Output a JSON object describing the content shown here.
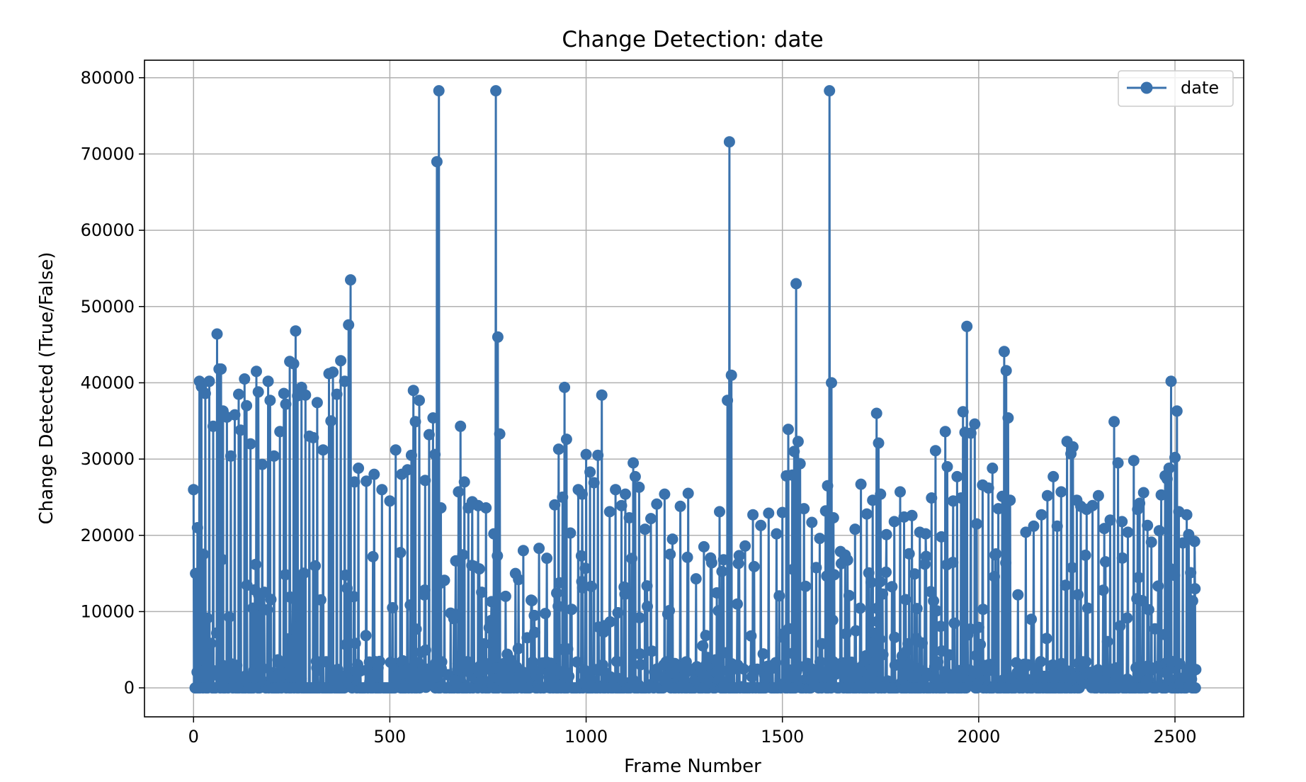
{
  "chart_data": {
    "type": "line",
    "title": "Change Detection: date",
    "xlabel": "Frame Number",
    "ylabel": "Change Detected (True/False)",
    "xlim": [
      -125,
      2675
    ],
    "ylim": [
      -3800,
      82300
    ],
    "xticks": [
      0,
      500,
      1000,
      1500,
      2000,
      2500
    ],
    "yticks": [
      0,
      10000,
      20000,
      30000,
      40000,
      50000,
      60000,
      70000,
      80000
    ],
    "grid": true,
    "legend_position": "top-right",
    "marker": "circle",
    "color": "#3a72ad",
    "series": [
      {
        "name": "date",
        "x_range": [
          0,
          2550
        ],
        "frame_step": 5,
        "peaks": [
          [
            0,
            26000
          ],
          [
            5,
            15000
          ],
          [
            10,
            21000
          ],
          [
            15,
            40200
          ],
          [
            20,
            39500
          ],
          [
            30,
            38600
          ],
          [
            40,
            40200
          ],
          [
            50,
            34300
          ],
          [
            60,
            46400
          ],
          [
            65,
            41800
          ],
          [
            70,
            41800
          ],
          [
            75,
            36300
          ],
          [
            85,
            35500
          ],
          [
            95,
            30400
          ],
          [
            105,
            35800
          ],
          [
            115,
            38500
          ],
          [
            120,
            33800
          ],
          [
            130,
            40500
          ],
          [
            135,
            37000
          ],
          [
            145,
            32000
          ],
          [
            160,
            41500
          ],
          [
            165,
            38800
          ],
          [
            175,
            29300
          ],
          [
            190,
            40200
          ],
          [
            195,
            37700
          ],
          [
            205,
            30400
          ],
          [
            220,
            33600
          ],
          [
            230,
            38600
          ],
          [
            235,
            37200
          ],
          [
            245,
            42800
          ],
          [
            255,
            42500
          ],
          [
            260,
            46800
          ],
          [
            265,
            38300
          ],
          [
            275,
            39400
          ],
          [
            285,
            38400
          ],
          [
            295,
            33000
          ],
          [
            305,
            32800
          ],
          [
            315,
            37400
          ],
          [
            330,
            31200
          ],
          [
            345,
            41200
          ],
          [
            350,
            35000
          ],
          [
            355,
            41400
          ],
          [
            365,
            38500
          ],
          [
            375,
            42900
          ],
          [
            385,
            40200
          ],
          [
            395,
            47600
          ],
          [
            400,
            53500
          ],
          [
            410,
            27000
          ],
          [
            420,
            28800
          ],
          [
            440,
            27100
          ],
          [
            460,
            28000
          ],
          [
            480,
            26000
          ],
          [
            500,
            24500
          ],
          [
            515,
            31200
          ],
          [
            530,
            28000
          ],
          [
            545,
            28600
          ],
          [
            555,
            30500
          ],
          [
            560,
            39000
          ],
          [
            565,
            34900
          ],
          [
            575,
            37700
          ],
          [
            590,
            27200
          ],
          [
            600,
            33200
          ],
          [
            610,
            35400
          ],
          [
            615,
            30600
          ],
          [
            620,
            69000
          ],
          [
            625,
            78300
          ],
          [
            630,
            23600
          ],
          [
            655,
            9800
          ],
          [
            675,
            25700
          ],
          [
            680,
            34300
          ],
          [
            690,
            27000
          ],
          [
            700,
            23600
          ],
          [
            710,
            24400
          ],
          [
            725,
            23900
          ],
          [
            745,
            23600
          ],
          [
            765,
            20200
          ],
          [
            770,
            78300
          ],
          [
            775,
            46000
          ],
          [
            780,
            33300
          ],
          [
            795,
            12000
          ],
          [
            820,
            15000
          ],
          [
            840,
            18000
          ],
          [
            860,
            11500
          ],
          [
            880,
            18300
          ],
          [
            900,
            17000
          ],
          [
            920,
            24000
          ],
          [
            930,
            31300
          ],
          [
            940,
            25000
          ],
          [
            945,
            39400
          ],
          [
            950,
            32600
          ],
          [
            960,
            20300
          ],
          [
            980,
            26000
          ],
          [
            990,
            25400
          ],
          [
            1000,
            30600
          ],
          [
            1010,
            28300
          ],
          [
            1020,
            26900
          ],
          [
            1030,
            30500
          ],
          [
            1040,
            38400
          ],
          [
            1060,
            23100
          ],
          [
            1075,
            26000
          ],
          [
            1090,
            23900
          ],
          [
            1100,
            25400
          ],
          [
            1110,
            22300
          ],
          [
            1120,
            29500
          ],
          [
            1125,
            27700
          ],
          [
            1135,
            26300
          ],
          [
            1150,
            20800
          ],
          [
            1165,
            22200
          ],
          [
            1180,
            24100
          ],
          [
            1200,
            25400
          ],
          [
            1220,
            19500
          ],
          [
            1240,
            23800
          ],
          [
            1260,
            25500
          ],
          [
            1280,
            14300
          ],
          [
            1300,
            18500
          ],
          [
            1320,
            16400
          ],
          [
            1340,
            23100
          ],
          [
            1350,
            16800
          ],
          [
            1360,
            37700
          ],
          [
            1365,
            71600
          ],
          [
            1370,
            41000
          ],
          [
            1385,
            11000
          ],
          [
            1405,
            18600
          ],
          [
            1425,
            22700
          ],
          [
            1445,
            21300
          ],
          [
            1465,
            22900
          ],
          [
            1485,
            20200
          ],
          [
            1500,
            23000
          ],
          [
            1510,
            27800
          ],
          [
            1515,
            33900
          ],
          [
            1525,
            27900
          ],
          [
            1530,
            31000
          ],
          [
            1535,
            53000
          ],
          [
            1540,
            32300
          ],
          [
            1545,
            29400
          ],
          [
            1555,
            23500
          ],
          [
            1575,
            21700
          ],
          [
            1595,
            19600
          ],
          [
            1610,
            23200
          ],
          [
            1615,
            26500
          ],
          [
            1620,
            78300
          ],
          [
            1625,
            40000
          ],
          [
            1630,
            22300
          ],
          [
            1650,
            16300
          ],
          [
            1670,
            12100
          ],
          [
            1685,
            20800
          ],
          [
            1700,
            26700
          ],
          [
            1715,
            22800
          ],
          [
            1730,
            24600
          ],
          [
            1740,
            36000
          ],
          [
            1745,
            32100
          ],
          [
            1750,
            25400
          ],
          [
            1765,
            20100
          ],
          [
            1785,
            21800
          ],
          [
            1800,
            25700
          ],
          [
            1810,
            22400
          ],
          [
            1830,
            22600
          ],
          [
            1850,
            20400
          ],
          [
            1865,
            20200
          ],
          [
            1880,
            24900
          ],
          [
            1890,
            31100
          ],
          [
            1905,
            19800
          ],
          [
            1915,
            33600
          ],
          [
            1920,
            29000
          ],
          [
            1935,
            24500
          ],
          [
            1945,
            27700
          ],
          [
            1955,
            24900
          ],
          [
            1960,
            36200
          ],
          [
            1965,
            33500
          ],
          [
            1970,
            47400
          ],
          [
            1980,
            33400
          ],
          [
            1990,
            34600
          ],
          [
            1995,
            21500
          ],
          [
            2010,
            26600
          ],
          [
            2025,
            26200
          ],
          [
            2035,
            28800
          ],
          [
            2050,
            23500
          ],
          [
            2060,
            25100
          ],
          [
            2065,
            44100
          ],
          [
            2070,
            41600
          ],
          [
            2075,
            35400
          ],
          [
            2080,
            24600
          ],
          [
            2100,
            12200
          ],
          [
            2120,
            20400
          ],
          [
            2140,
            21200
          ],
          [
            2160,
            22700
          ],
          [
            2175,
            25200
          ],
          [
            2190,
            27700
          ],
          [
            2200,
            21200
          ],
          [
            2210,
            25700
          ],
          [
            2225,
            32300
          ],
          [
            2235,
            30700
          ],
          [
            2240,
            31600
          ],
          [
            2250,
            24600
          ],
          [
            2260,
            23800
          ],
          [
            2275,
            23400
          ],
          [
            2290,
            23900
          ],
          [
            2305,
            25200
          ],
          [
            2320,
            20900
          ],
          [
            2335,
            22000
          ],
          [
            2345,
            34900
          ],
          [
            2355,
            29500
          ],
          [
            2365,
            21800
          ],
          [
            2380,
            20400
          ],
          [
            2395,
            29800
          ],
          [
            2405,
            23400
          ],
          [
            2410,
            24200
          ],
          [
            2420,
            25600
          ],
          [
            2430,
            21300
          ],
          [
            2440,
            19100
          ],
          [
            2460,
            20600
          ],
          [
            2465,
            25300
          ],
          [
            2475,
            27800
          ],
          [
            2480,
            27400
          ],
          [
            2485,
            28800
          ],
          [
            2490,
            40200
          ],
          [
            2500,
            30200
          ],
          [
            2505,
            36300
          ],
          [
            2510,
            23100
          ],
          [
            2520,
            19000
          ],
          [
            2530,
            22700
          ],
          [
            2535,
            20100
          ],
          [
            2540,
            15100
          ],
          [
            2545,
            11400
          ],
          [
            2550,
            19200
          ],
          [
            2553,
            2400
          ]
        ],
        "values_note": ""
      }
    ]
  }
}
